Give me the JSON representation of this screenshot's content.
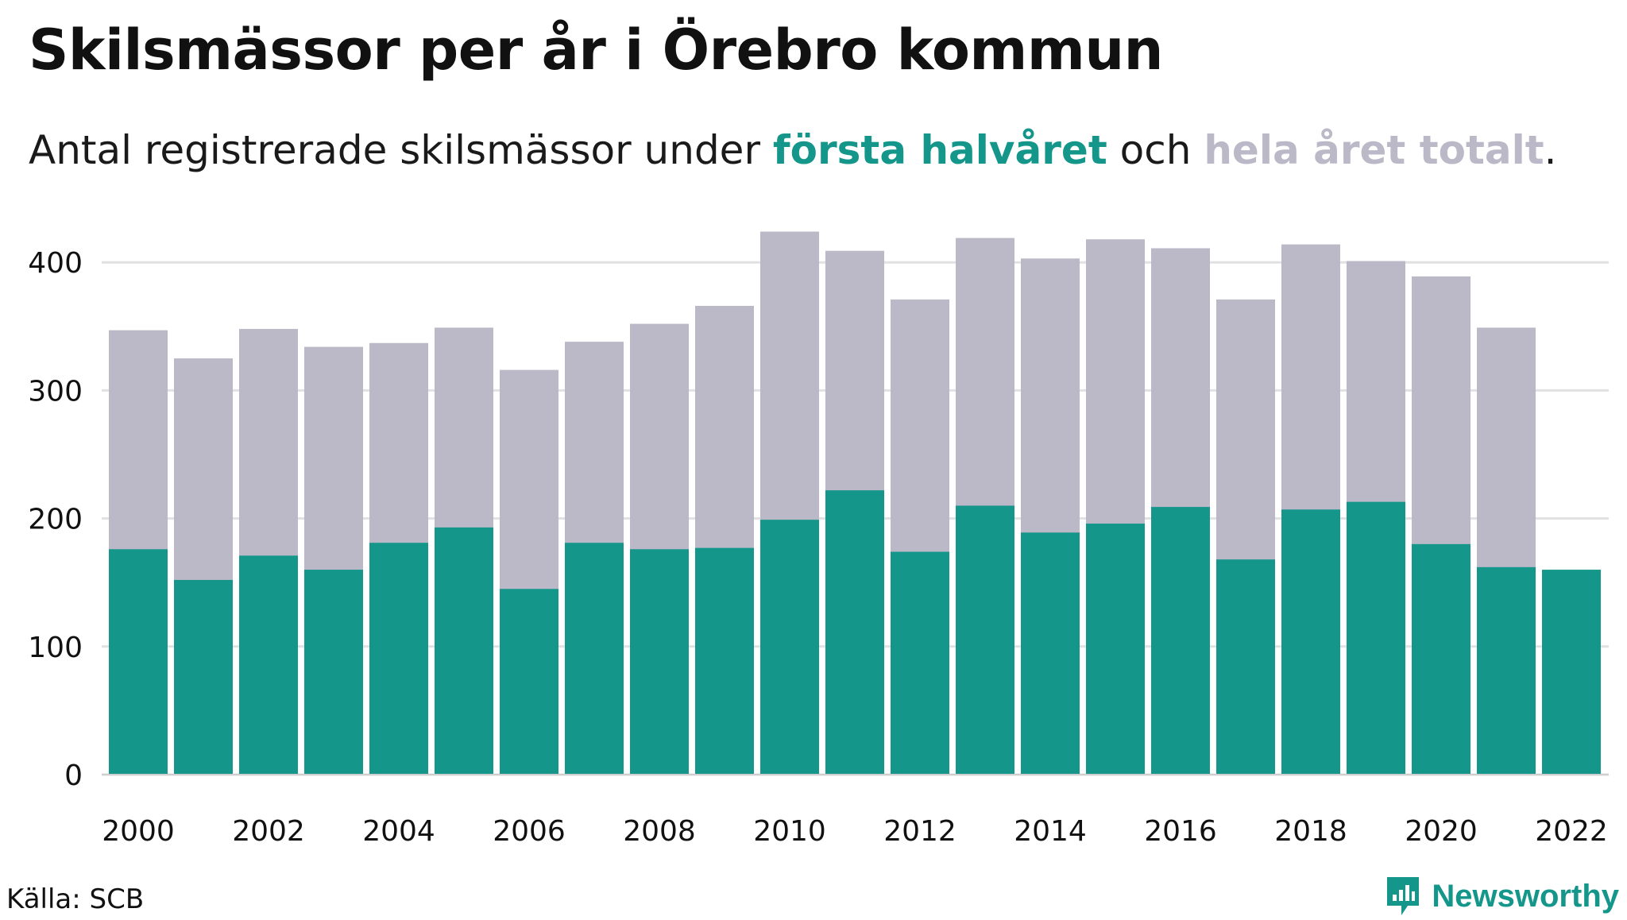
{
  "title": "Skilsmässor per år i Örebro kommun",
  "subtitle": {
    "prefix": "Antal registrerade skilsmässor under ",
    "series1": "första halvåret",
    "middle": " och ",
    "series2": "hela året totalt",
    "suffix": "."
  },
  "colors": {
    "first_half": "#14968a",
    "full_year": "#bbb9c8",
    "gridline": "#e1e1e1"
  },
  "chart_data": {
    "type": "bar",
    "layout": "overlay",
    "categories": [
      "2000",
      "2001",
      "2002",
      "2003",
      "2004",
      "2005",
      "2006",
      "2007",
      "2008",
      "2009",
      "2010",
      "2011",
      "2012",
      "2013",
      "2014",
      "2015",
      "2016",
      "2017",
      "2018",
      "2019",
      "2020",
      "2021",
      "2022"
    ],
    "x_tick_labels": [
      "2000",
      "2002",
      "2004",
      "2006",
      "2008",
      "2010",
      "2012",
      "2014",
      "2016",
      "2018",
      "2020",
      "2022"
    ],
    "y_ticks": [
      0,
      100,
      200,
      300,
      400
    ],
    "ylim": [
      0,
      430
    ],
    "grid": "horizontal",
    "series": [
      {
        "name": "hela året totalt",
        "color": "#bbb9c8",
        "values": [
          347,
          325,
          348,
          334,
          337,
          349,
          316,
          338,
          352,
          366,
          424,
          409,
          371,
          419,
          403,
          418,
          411,
          371,
          414,
          401,
          389,
          349,
          null
        ]
      },
      {
        "name": "första halvåret",
        "color": "#14968a",
        "values": [
          176,
          152,
          171,
          160,
          181,
          193,
          145,
          181,
          176,
          177,
          199,
          222,
          174,
          210,
          189,
          196,
          209,
          168,
          207,
          213,
          180,
          162,
          160
        ]
      }
    ]
  },
  "footer": {
    "source": "Källa: SCB",
    "brand": "Newsworthy",
    "brand_icon": "newsworthy-logo-icon"
  }
}
